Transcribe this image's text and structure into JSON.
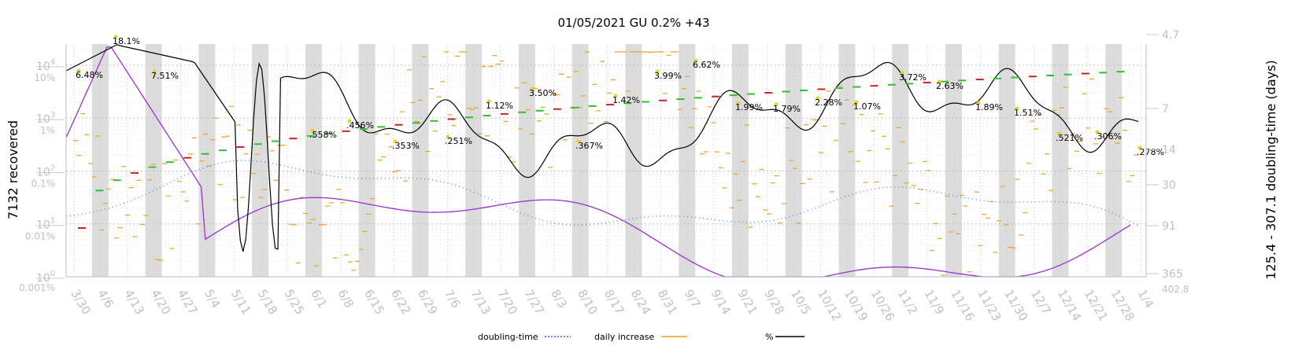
{
  "chart_data": {
    "type": "line",
    "title": "01/05/2021 GU 0.2% +43",
    "ylabel_left": "7132 recovered",
    "ylabel_right": "125.4 - 307.1 doubling-time (days)",
    "yscale": "log",
    "left_ticks": [
      "10^0",
      "10^1",
      "10^2",
      "10^3",
      "10^4"
    ],
    "left_ticks_small": [
      "0.001%",
      "0.01%",
      "0.1%",
      "1%",
      "10%"
    ],
    "right_ticks": [
      "365",
      "91",
      "30",
      "14",
      "7",
      "4.7"
    ],
    "right_bottom_value": "402.8",
    "x_labels": [
      "3/30",
      "4/6",
      "4/13",
      "4/20",
      "4/27",
      "5/4",
      "5/11",
      "5/18",
      "5/25",
      "6/1",
      "6/8",
      "6/15",
      "6/22",
      "6/29",
      "7/6",
      "7/13",
      "7/20",
      "7/27",
      "8/3",
      "8/10",
      "8/17",
      "8/24",
      "8/31",
      "9/7",
      "9/14",
      "9/21",
      "9/28",
      "10/5",
      "10/12",
      "10/19",
      "10/26",
      "11/2",
      "11/9",
      "11/16",
      "11/23",
      "11/30",
      "12/7",
      "12/14",
      "12/21",
      "12/28",
      "1/4"
    ],
    "pct_annotations": [
      {
        "date": "3/30",
        "label": "6.48%",
        "pct": 6.48
      },
      {
        "date": "4/7",
        "label": "18.1%",
        "pct": 18.1
      },
      {
        "date": "4/21",
        "label": "7.51%",
        "pct": 7.51
      },
      {
        "date": "6/2",
        "label": ".558%",
        "pct": 0.558
      },
      {
        "date": "6/9",
        "label": ".456%",
        "pct": 0.456
      },
      {
        "date": "6/23",
        "label": ".353%",
        "pct": 0.353
      },
      {
        "date": "7/7",
        "label": ".251%",
        "pct": 0.251
      },
      {
        "date": "7/17",
        "label": "1.12%",
        "pct": 1.12
      },
      {
        "date": "7/26",
        "label": "3.50%",
        "pct": 3.5
      },
      {
        "date": "8/9",
        "label": ".367%",
        "pct": 0.367
      },
      {
        "date": "8/21",
        "label": "1.42%",
        "pct": 1.42
      },
      {
        "date": "8/31",
        "label": "3.99%",
        "pct": 3.99
      },
      {
        "date": "9/8",
        "label": "6.62%",
        "pct": 6.62
      },
      {
        "date": "9/21",
        "label": "1.99%",
        "pct": 1.99
      },
      {
        "date": "9/30",
        "label": "1.79%",
        "pct": 1.79
      },
      {
        "date": "10/13",
        "label": "2.28%",
        "pct": 2.28
      },
      {
        "date": "10/23",
        "label": "1.07%",
        "pct": 1.07
      },
      {
        "date": "11/3",
        "label": "3.72%",
        "pct": 3.72
      },
      {
        "date": "11/13",
        "label": "2.63%",
        "pct": 2.63
      },
      {
        "date": "11/23",
        "label": "1.89%",
        "pct": 1.89
      },
      {
        "date": "12/3",
        "label": "1.51%",
        "pct": 1.51
      },
      {
        "date": "12/14",
        "label": ".521%",
        "pct": 0.521
      },
      {
        "date": "12/23",
        "label": ".306%",
        "pct": 0.306
      },
      {
        "date": "1/5",
        "label": ".278%",
        "pct": 0.278
      }
    ],
    "series": [
      {
        "name": "doubling-time",
        "color": "#9b30d0",
        "style": "dotted-tail line"
      },
      {
        "name": "daily increase",
        "color": "#f0a020",
        "style": "short dashes"
      },
      {
        "name": "%",
        "color": "#000000",
        "style": "solid line"
      }
    ],
    "grid": true,
    "legend_position": "bottom-center"
  },
  "legend": {
    "doubling_time": "doubling-time",
    "daily_increase": "daily increase",
    "percent": "%"
  }
}
